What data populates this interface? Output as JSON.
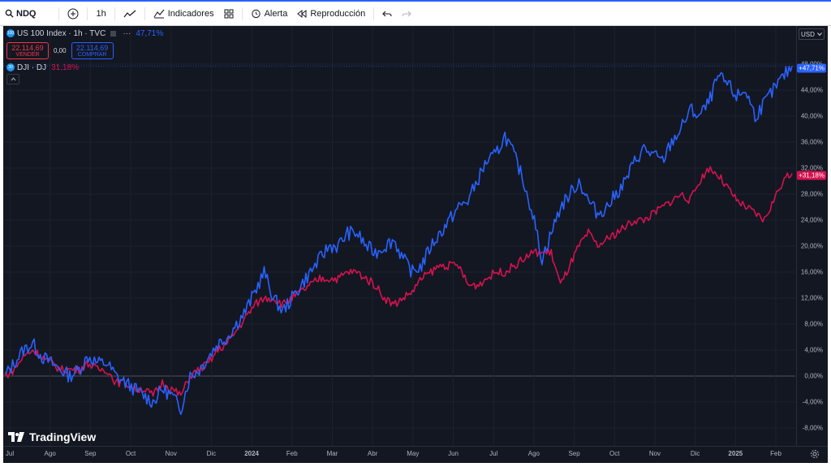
{
  "toolbar": {
    "symbol": "NDQ",
    "interval": "1h",
    "indicators_label": "Indicadores",
    "alert_label": "Alerta",
    "replay_label": "Reproducción"
  },
  "legend": {
    "main_symbol": "US 100 Index · 1h · TVC",
    "main_pct": "47,71%",
    "sell_price": "22.114,69",
    "sell_label": "VENDER",
    "spread": "0,00",
    "buy_price": "22.114,69",
    "buy_label": "COMPRAR",
    "compare_symbol": "DJI · DJ",
    "compare_pct": "31,18%"
  },
  "currency": "USD",
  "brand": "TradingView",
  "tags": {
    "ndq": "+47,71%",
    "dji": "+31,18%"
  },
  "colors": {
    "ndq": "#2962ff",
    "dji": "#d6124f",
    "bg": "#131722"
  },
  "chart_data": {
    "type": "line",
    "y_ticks": [
      "48,00%",
      "44,00%",
      "40,00%",
      "36,00%",
      "32,00%",
      "28,00%",
      "24,00%",
      "20,00%",
      "16,00%",
      "12,00%",
      "8,00%",
      "4,00%",
      "0,00%",
      "-4,00%",
      "-8,00%"
    ],
    "x_ticks": [
      "Jul",
      "Ago",
      "Sep",
      "Oct",
      "Nov",
      "Dic",
      "2024",
      "Feb",
      "Mar",
      "Abr",
      "May",
      "Jun",
      "Jul",
      "Ago",
      "Sep",
      "Oct",
      "Nov",
      "Dic",
      "2025",
      "Feb"
    ],
    "ylim": [
      -10,
      50
    ],
    "series": [
      {
        "name": "US 100 Index · 1h · TVC",
        "values": [
          0,
          2,
          4,
          5,
          3,
          2,
          1,
          0,
          1,
          3,
          2,
          2,
          0,
          -1,
          -2,
          -3,
          -4,
          -2,
          -3,
          -5,
          0,
          1,
          3,
          5,
          6,
          8,
          10,
          13,
          16,
          12,
          10,
          12,
          14,
          16,
          18,
          20,
          20,
          22,
          22,
          20,
          19,
          20,
          21,
          18,
          16,
          17,
          20,
          22,
          24,
          26,
          27,
          30,
          33,
          34,
          37,
          34,
          30,
          25,
          18,
          22,
          26,
          28,
          30,
          27,
          25,
          26,
          28,
          30,
          33,
          35,
          34,
          33,
          36,
          38,
          41,
          40,
          42,
          46,
          45,
          43,
          44,
          40,
          42,
          44,
          46,
          47.71
        ]
      },
      {
        "name": "DJI · DJ",
        "values": [
          0,
          1,
          3,
          4,
          3,
          2,
          1,
          1,
          1,
          2,
          1,
          1,
          -1,
          -1,
          -2,
          -2,
          -3,
          -1,
          -2,
          -3,
          0,
          1,
          2,
          4,
          5,
          7,
          9,
          11,
          12,
          12,
          11,
          12,
          13,
          14,
          15,
          15,
          15,
          16,
          16,
          15,
          14,
          12,
          11,
          12,
          13,
          15,
          16,
          17,
          17,
          17,
          14,
          14,
          15,
          16,
          16,
          17,
          18,
          19,
          19,
          19,
          14,
          17,
          20,
          22,
          20,
          21,
          22,
          23,
          24,
          24,
          25,
          26,
          27,
          28,
          27,
          30,
          32,
          31,
          29,
          27,
          26,
          25,
          24,
          27,
          30,
          31.18
        ]
      }
    ]
  }
}
